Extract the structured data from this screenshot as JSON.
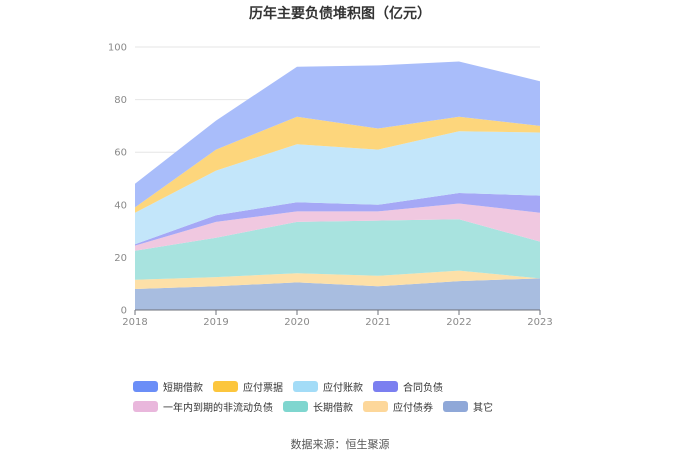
{
  "chart_data": {
    "type": "area",
    "stacked": true,
    "title": "历年主要负债堆积图（亿元）",
    "categories": [
      "2018",
      "2019",
      "2020",
      "2021",
      "2022",
      "2023"
    ],
    "ylim": [
      0,
      100
    ],
    "yticks": [
      0,
      20,
      40,
      60,
      80,
      100
    ],
    "grid": true,
    "legend_position": "bottom",
    "series": [
      {
        "name": "其它",
        "color": "#a8bde0",
        "values": [
          8,
          9,
          10.5,
          9,
          11,
          12
        ]
      },
      {
        "name": "应付债券",
        "color": "#fde0a8",
        "values": [
          3.5,
          3.5,
          3.5,
          4,
          4,
          0
        ]
      },
      {
        "name": "长期借款",
        "color": "#a8e3df",
        "values": [
          11,
          15,
          19.5,
          21,
          19.5,
          14
        ]
      },
      {
        "name": "一年内到期的非流动负债",
        "color": "#f0c8e0",
        "values": [
          2,
          6,
          4,
          3.5,
          6,
          11
        ]
      },
      {
        "name": "合同负债",
        "color": "#a5a8f6",
        "values": [
          0.5,
          2.5,
          3.5,
          2.5,
          4,
          6.5
        ]
      },
      {
        "name": "应付账款",
        "color": "#c3e6fa",
        "values": [
          12,
          17,
          22,
          21,
          23.5,
          24
        ]
      },
      {
        "name": "应付票据",
        "color": "#fdd67c",
        "values": [
          2,
          8,
          10.5,
          8,
          5.5,
          2.5
        ]
      },
      {
        "name": "短期借款",
        "color": "#a9bdfa",
        "values": [
          9,
          11,
          19,
          24,
          21,
          17
        ]
      }
    ]
  },
  "legend": [
    {
      "label": "短期借款",
      "color": "#6b8ef7"
    },
    {
      "label": "应付票据",
      "color": "#fcc63d"
    },
    {
      "label": "应付账款",
      "color": "#a3dcf7"
    },
    {
      "label": "合同负债",
      "color": "#7b7ff0"
    },
    {
      "label": "一年内到期的非流动负债",
      "color": "#e9b7dc"
    },
    {
      "label": "长期借款",
      "color": "#7fd6cf"
    },
    {
      "label": "应付债券",
      "color": "#fdd79a"
    },
    {
      "label": "其它",
      "color": "#8fa8d8"
    }
  ],
  "source": "数据来源：恒生聚源"
}
